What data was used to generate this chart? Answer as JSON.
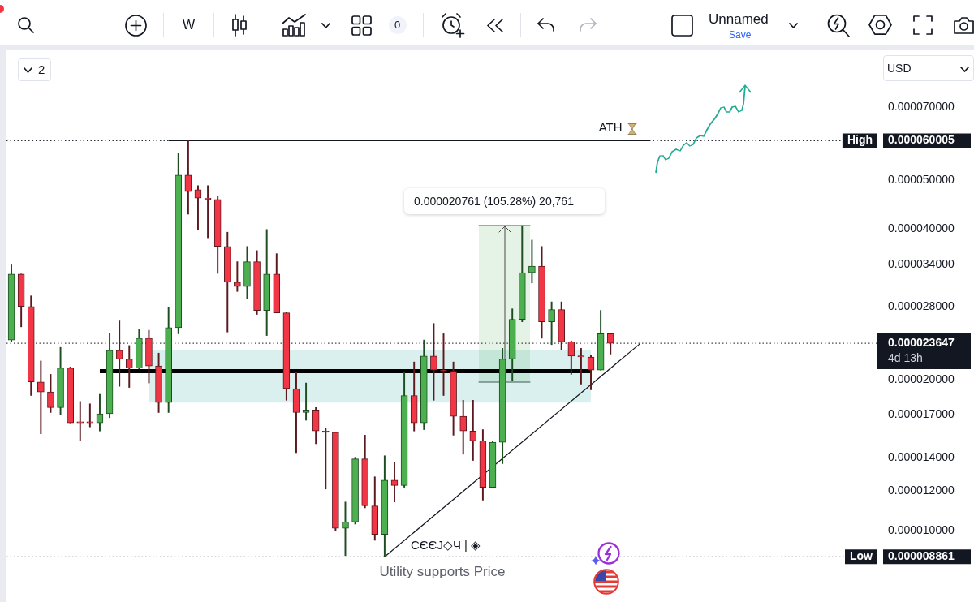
{
  "chart_data": {
    "type": "candlestick",
    "title": "Utility supports Price",
    "ylabel": "USD",
    "log": true,
    "tick_labels": "y",
    "categories": [
      null,
      null,
      null,
      null,
      null,
      null,
      null,
      null,
      null,
      null,
      null,
      null,
      null,
      null,
      null,
      null,
      null,
      null,
      null,
      null,
      null,
      null,
      null,
      null,
      null,
      null,
      null,
      null,
      null,
      null,
      null,
      null,
      null,
      null,
      null,
      null,
      null,
      null,
      null,
      null,
      null,
      null,
      null,
      null,
      null,
      null,
      null,
      null,
      null,
      null,
      null,
      null,
      null,
      null,
      null,
      null,
      null,
      null,
      null,
      null,
      null,
      null,
      null,
      null,
      null,
      null,
      null,
      null,
      null,
      null,
      null,
      null,
      null,
      null,
      null,
      null,
      null,
      null,
      null,
      null,
      null,
      null,
      null,
      null,
      null,
      null,
      null,
      null,
      null
    ],
    "ohlc": [
      [
        2.4e-05,
        3.39e-05,
        2.38e-05,
        3.25e-05
      ],
      [
        3.25e-05,
        3.25e-05,
        2.55e-05,
        2.8e-05
      ],
      [
        2.8e-05,
        2.94e-05,
        1.86e-05,
        1.98e-05
      ],
      [
        1.98e-05,
        2.18e-05,
        1.56e-05,
        1.89e-05
      ],
      [
        1.89e-05,
        2.05e-05,
        1.72e-05,
        1.76e-05
      ],
      [
        1.76e-05,
        2.32e-05,
        1.7e-05,
        2.11e-05
      ],
      [
        2.11e-05,
        2.12e-05,
        1.64e-05,
        1.64e-05
      ],
      [
        1.64e-05,
        1.81e-05,
        1.51e-05,
        1.64e-05
      ],
      [
        1.64e-05,
        1.79e-05,
        1.61e-05,
        1.64e-05
      ],
      [
        1.64e-05,
        1.87e-05,
        1.58e-05,
        1.71e-05
      ],
      [
        1.71e-05,
        2.48e-05,
        1.68e-05,
        2.29e-05
      ],
      [
        2.29e-05,
        2.62e-05,
        1.94e-05,
        2.2e-05
      ],
      [
        2.2e-05,
        2.34e-05,
        1.93e-05,
        2.11e-05
      ],
      [
        2.11e-05,
        2.52e-05,
        2.1e-05,
        2.42e-05
      ],
      [
        2.42e-05,
        2.51e-05,
        1.97e-05,
        2.13e-05
      ],
      [
        2.13e-05,
        2.26e-05,
        1.72e-05,
        1.8e-05
      ],
      [
        1.8e-05,
        2.79e-05,
        1.72e-05,
        2.54e-05
      ],
      [
        2.54e-05,
        5.66e-05,
        2.47e-05,
        5.12e-05
      ],
      [
        5.12e-05,
        6.0005e-05,
        4.28e-05,
        4.75e-05
      ],
      [
        4.79e-05,
        4.88e-05,
        3.99e-05,
        4.61e-05
      ],
      [
        4.61e-05,
        4.88e-05,
        3.84e-05,
        4.58e-05
      ],
      [
        4.58e-05,
        4.65e-05,
        3.26e-05,
        3.69e-05
      ],
      [
        3.69e-05,
        3.94e-05,
        2.49e-05,
        3.13e-05
      ],
      [
        3.13e-05,
        3.44e-05,
        3e-05,
        3.07e-05
      ],
      [
        3.07e-05,
        3.69e-05,
        2.9e-05,
        3.44e-05
      ],
      [
        3.44e-05,
        3.62e-05,
        2.7e-05,
        2.75e-05
      ],
      [
        2.75e-05,
        3.99e-05,
        2.45e-05,
        3.25e-05
      ],
      [
        3.25e-05,
        3.57e-05,
        2.72e-05,
        2.72e-05
      ],
      [
        2.72e-05,
        2.73e-05,
        1.82e-05,
        1.92e-05
      ],
      [
        1.92e-05,
        2.07e-05,
        1.43e-05,
        1.72e-05
      ],
      [
        1.72e-05,
        1.97e-05,
        1.66e-05,
        1.74e-05
      ],
      [
        1.74e-05,
        1.76e-05,
        1.49e-05,
        1.58e-05
      ],
      [
        1.58e-05,
        1.6e-05,
        1.21e-05,
        1.57e-05
      ],
      [
        1.57e-05,
        1.57e-05,
        1e-05,
        1.01e-05
      ],
      [
        1.01e-05,
        1.14e-05,
        8.91e-06,
        1.04e-05
      ],
      [
        1.04e-05,
        1.4e-05,
        1.03e-05,
        1.39e-05
      ],
      [
        1.39e-05,
        1.55e-05,
        1.11e-05,
        1.12e-05
      ],
      [
        1.12e-05,
        1.28e-05,
        9.56e-06,
        9.82e-06
      ],
      [
        9.82e-06,
        1.41e-05,
        8.861e-06,
        1.26e-05
      ],
      [
        1.26e-05,
        1.37e-05,
        1.14e-05,
        1.23e-05
      ],
      [
        1.23e-05,
        2.07e-05,
        1.22e-05,
        1.86e-05
      ],
      [
        1.86e-05,
        2.17e-05,
        1.58e-05,
        1.64e-05
      ],
      [
        1.64e-05,
        2.4e-05,
        1.59e-05,
        2.23e-05
      ],
      [
        2.23e-05,
        2.59e-05,
        1.82e-05,
        2.09e-05
      ],
      [
        2.09e-05,
        2.47e-05,
        1.86e-05,
        2.08e-05
      ],
      [
        2.08e-05,
        2.17e-05,
        1.55e-05,
        1.69e-05
      ],
      [
        1.69e-05,
        1.82e-05,
        1.42e-05,
        1.58e-05
      ],
      [
        1.58e-05,
        1.82e-05,
        1.38e-05,
        1.51e-05
      ],
      [
        1.51e-05,
        1.59e-05,
        1.15e-05,
        1.22e-05
      ],
      [
        1.22e-05,
        1.51e-05,
        1.22e-05,
        1.5e-05
      ],
      [
        1.5e-05,
        2.31e-05,
        1.36e-05,
        2.2e-05
      ],
      [
        2.2e-05,
        2.77e-05,
        1.99e-05,
        2.64e-05
      ],
      [
        2.64e-05,
        4.06e-05,
        2.61e-05,
        3.27e-05
      ],
      [
        3.27e-05,
        3.8e-05,
        3.12e-05,
        3.37e-05
      ],
      [
        3.37e-05,
        3.69e-05,
        2.42e-05,
        2.61e-05
      ],
      [
        2.61e-05,
        2.86e-05,
        2.35e-05,
        2.76e-05
      ],
      [
        2.76e-05,
        2.86e-05,
        2.29e-05,
        2.38e-05
      ],
      [
        2.38e-05,
        2.39e-05,
        2.05e-05,
        2.23e-05
      ],
      [
        2.23e-05,
        2.31e-05,
        1.96e-05,
        2.22e-05
      ],
      [
        2.22e-05,
        2.24e-05,
        1.91e-05,
        2.09e-05
      ],
      [
        2.09e-05,
        2.75e-05,
        2.09e-05,
        2.47e-05
      ],
      [
        2.47e-05,
        2.48e-05,
        2.25e-05,
        2.3647e-05
      ],
      null,
      null,
      null,
      null,
      null,
      null,
      null,
      null,
      null,
      null,
      null,
      null,
      null,
      null,
      null,
      null,
      null,
      null,
      null,
      null,
      null,
      null,
      null,
      null,
      null,
      null,
      null
    ],
    "series": [
      {
        "type": "line",
        "name": "ATH",
        "color": "#131722",
        "values": [
          null,
          null,
          null,
          null,
          null,
          null,
          null,
          null,
          null,
          null,
          null,
          null,
          null,
          null,
          null,
          null,
          6.0005e-05,
          6.0005e-05,
          6.0005e-05,
          6.0005e-05,
          6.0005e-05,
          6.0005e-05,
          6.0005e-05,
          6.0005e-05,
          6.0005e-05,
          6.0005e-05,
          6.0005e-05,
          6.0005e-05,
          6.0005e-05,
          6.0005e-05,
          6.0005e-05,
          6.0005e-05,
          6.0005e-05,
          6.0005e-05,
          6.0005e-05,
          6.0005e-05,
          6.0005e-05,
          6.0005e-05,
          6.0005e-05,
          6.0005e-05,
          6.0005e-05,
          6.0005e-05,
          6.0005e-05,
          6.0005e-05,
          6.0005e-05,
          6.0005e-05,
          6.0005e-05,
          6.0005e-05,
          6.0005e-05,
          6.0005e-05,
          6.0005e-05,
          6.0005e-05,
          6.0005e-05,
          6.0005e-05,
          6.0005e-05,
          6.0005e-05,
          6.0005e-05,
          6.0005e-05,
          6.0005e-05,
          6.0005e-05,
          6.0005e-05,
          6.0005e-05,
          6.0005e-05,
          6.0005e-05,
          6.0005e-05,
          6.0005e-05,
          null,
          null,
          null,
          null,
          null,
          null,
          null,
          null,
          null,
          null,
          null,
          null,
          null,
          null,
          null,
          null,
          null,
          null,
          null,
          null,
          null,
          null,
          null
        ]
      },
      {
        "type": "line",
        "color": "#000000",
        "values": [
          null,
          null,
          null,
          null,
          null,
          null,
          null,
          null,
          null,
          2.08e-05,
          2.08e-05,
          2.08e-05,
          2.08e-05,
          2.08e-05,
          2.08e-05,
          2.08e-05,
          2.08e-05,
          2.08e-05,
          2.08e-05,
          2.08e-05,
          2.08e-05,
          2.08e-05,
          2.08e-05,
          2.08e-05,
          2.08e-05,
          2.08e-05,
          2.08e-05,
          2.08e-05,
          2.08e-05,
          2.08e-05,
          2.08e-05,
          2.08e-05,
          2.08e-05,
          2.08e-05,
          2.08e-05,
          2.08e-05,
          2.08e-05,
          2.08e-05,
          2.08e-05,
          2.08e-05,
          2.08e-05,
          2.08e-05,
          2.08e-05,
          2.08e-05,
          2.08e-05,
          2.08e-05,
          2.08e-05,
          2.08e-05,
          2.08e-05,
          2.08e-05,
          2.08e-05,
          2.08e-05,
          2.08e-05,
          2.08e-05,
          2.08e-05,
          2.08e-05,
          2.08e-05,
          2.08e-05,
          2.08e-05,
          2.08e-05,
          null,
          null,
          null,
          null,
          null,
          null,
          null,
          null,
          null,
          null,
          null,
          null,
          null,
          null,
          null,
          null,
          null,
          null,
          null,
          null,
          null,
          null,
          null,
          null,
          null,
          null,
          null,
          null,
          null
        ],
        "lower": [
          null,
          null,
          null,
          null,
          null,
          null,
          null,
          null,
          null,
          null,
          null,
          null,
          null,
          null,
          1.8e-05,
          1.8e-05,
          1.8e-05,
          1.8e-05,
          1.8e-05,
          1.8e-05,
          1.8e-05,
          1.8e-05,
          1.8e-05,
          1.8e-05,
          1.8e-05,
          1.8e-05,
          1.8e-05,
          1.8e-05,
          1.8e-05,
          1.8e-05,
          1.8e-05,
          1.8e-05,
          1.8e-05,
          1.8e-05,
          1.8e-05,
          1.8e-05,
          1.8e-05,
          1.8e-05,
          1.8e-05,
          1.8e-05,
          1.8e-05,
          1.8e-05,
          1.8e-05,
          1.8e-05,
          1.8e-05,
          1.8e-05,
          1.8e-05,
          1.8e-05,
          1.8e-05,
          1.8e-05,
          1.8e-05,
          1.8e-05,
          1.8e-05,
          1.8e-05,
          1.8e-05,
          1.8e-05,
          1.8e-05,
          1.8e-05,
          1.8e-05,
          1.8e-05,
          null,
          null,
          null,
          null,
          null,
          null,
          null,
          null,
          null,
          null,
          null,
          null,
          null,
          null,
          null,
          null,
          null,
          null,
          null,
          null,
          null,
          null,
          null,
          null,
          null,
          null,
          null,
          null,
          null
        ],
        "upper": [
          null,
          null,
          null,
          null,
          null,
          null,
          null,
          null,
          null,
          null,
          null,
          null,
          null,
          null,
          2.29e-05,
          2.29e-05,
          2.29e-05,
          2.29e-05,
          2.29e-05,
          2.29e-05,
          2.29e-05,
          2.29e-05,
          2.29e-05,
          2.29e-05,
          2.29e-05,
          2.29e-05,
          2.29e-05,
          2.29e-05,
          2.29e-05,
          2.29e-05,
          2.29e-05,
          2.29e-05,
          2.29e-05,
          2.29e-05,
          2.29e-05,
          2.29e-05,
          2.29e-05,
          2.29e-05,
          2.29e-05,
          2.29e-05,
          2.29e-05,
          2.29e-05,
          2.29e-05,
          2.29e-05,
          2.29e-05,
          2.29e-05,
          2.29e-05,
          2.29e-05,
          2.29e-05,
          2.29e-05,
          2.29e-05,
          2.29e-05,
          2.29e-05,
          2.29e-05,
          2.29e-05,
          2.29e-05,
          2.29e-05,
          2.29e-05,
          2.29e-05,
          2.29e-05,
          null,
          null,
          null,
          null,
          null,
          null,
          null,
          null,
          null,
          null,
          null,
          null,
          null,
          null,
          null,
          null,
          null,
          null,
          null,
          null,
          null,
          null,
          null,
          null,
          null,
          null,
          null,
          null,
          null
        ]
      },
      {
        "type": "line",
        "color": "#131722",
        "values": [
          null,
          null,
          null,
          null,
          null,
          null,
          null,
          null,
          null,
          null,
          null,
          null,
          null,
          null,
          null,
          null,
          null,
          null,
          null,
          null,
          null,
          null,
          null,
          null,
          null,
          null,
          null,
          null,
          null,
          null,
          null,
          null,
          null,
          null,
          null,
          null,
          null,
          null,
          8.861e-06,
          null,
          null,
          null,
          null,
          null,
          null,
          null,
          null,
          null,
          null,
          null,
          null,
          null,
          null,
          null,
          null,
          null,
          null,
          null,
          null,
          null,
          null,
          null,
          null,
          null,
          2.36e-05,
          null,
          null,
          null,
          null,
          null,
          null,
          null,
          null,
          null,
          null,
          null,
          null,
          null,
          null,
          null,
          null,
          null,
          null,
          null,
          null,
          null,
          null,
          null,
          null
        ]
      }
    ],
    "ylim": [
      7.2e-06,
      9.09e-05
    ],
    "yticks": [
      {
        "value": 8.861e-06,
        "label": "0.000008861"
      },
      {
        "value": 1e-05,
        "label": "0.000010000"
      },
      {
        "value": 1.2e-05,
        "label": "0.000012000"
      },
      {
        "value": 1.4e-05,
        "label": "0.000014000"
      },
      {
        "value": 1.7e-05,
        "label": "0.000017000"
      },
      {
        "value": 2e-05,
        "label": "0.000020000"
      },
      {
        "value": 2.3647e-05,
        "label": "0.000023647"
      },
      {
        "value": 2.8e-05,
        "label": "0.000028000"
      },
      {
        "value": 3.4e-05,
        "label": "0.000034000"
      },
      {
        "value": 4e-05,
        "label": "0.000040000"
      },
      {
        "value": 5e-05,
        "label": "0.000050000"
      },
      {
        "value": 6.0005e-05,
        "label": "0.000060005"
      },
      {
        "value": 7e-05,
        "label": "0.000070000"
      }
    ],
    "ref_lines": [
      {
        "axis": "y",
        "value": 6.0005e-05,
        "label": "High",
        "line_style": "dotted",
        "color": "#131722"
      },
      {
        "axis": "y",
        "value": 2.3647e-05,
        "label": "4d 13h",
        "line_style": "dotted",
        "color": "#131722"
      },
      {
        "axis": "y",
        "value": 8.861e-06,
        "label": "Low",
        "line_style": "dotted",
        "color": "#131722"
      }
    ],
    "annotations": [
      "0.000020761 (105.28%) 20,761",
      "CЄЄJ◇Ч | ◈",
      "W",
      "0",
      "Unnamed",
      "Save",
      "2"
    ]
  }
}
